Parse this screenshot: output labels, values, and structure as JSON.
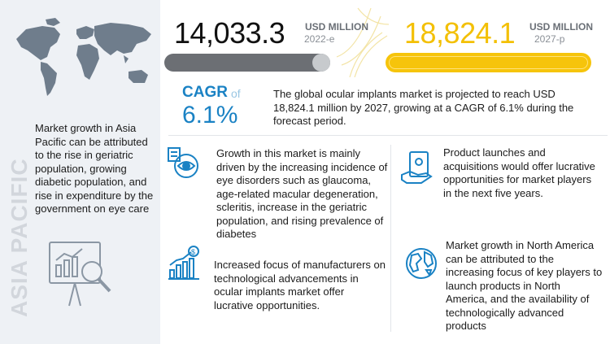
{
  "region": {
    "label": "ASIA PACIFIC",
    "description": "Market growth in Asia Pacific can be attributed to the rise in geriatric population, growing diabetic population, and rise in expenditure by the government on eye care"
  },
  "market_2022": {
    "value": "14,033.3",
    "unit": "USD MILLION",
    "year": "2022-e",
    "color": "#6c6f74"
  },
  "market_2027": {
    "value": "18,824.1",
    "unit": "USD MILLION",
    "year": "2027-p",
    "color": "#f6c40b"
  },
  "cagr": {
    "label": "CAGR",
    "of": "of",
    "value": "6.1%",
    "text": "The global ocular implants market is projected to reach USD 18,824.1 million by 2027, growing at a CAGR of 6.1% during the forecast period."
  },
  "insights": [
    {
      "icon": "eye-disorder-icon",
      "text": "Growth in this market is mainly driven by the increasing incidence of eye disorders such as glaucoma, age-related macular degeneration, scleritis, increase in the geriatric population, and rising prevalence of diabetes"
    },
    {
      "icon": "product-cash-icon",
      "text": "Product launches and acquisitions would offer lucrative opportunities for market players in the next five years."
    },
    {
      "icon": "growth-chart-dollar-icon",
      "text": "Increased focus of manufacturers on technological advancements in ocular implants market offer lucrative opportunities."
    },
    {
      "icon": "globe-icon",
      "text": "Market growth in North America can be attributed to the increasing focus of key players to launch products in North America, and the availability of technologically advanced products"
    }
  ],
  "colors": {
    "accent_blue": "#1a82c4",
    "accent_yellow": "#f6c40b",
    "bar_gray": "#6c6f74",
    "panel_bg": "#eef1f5"
  }
}
